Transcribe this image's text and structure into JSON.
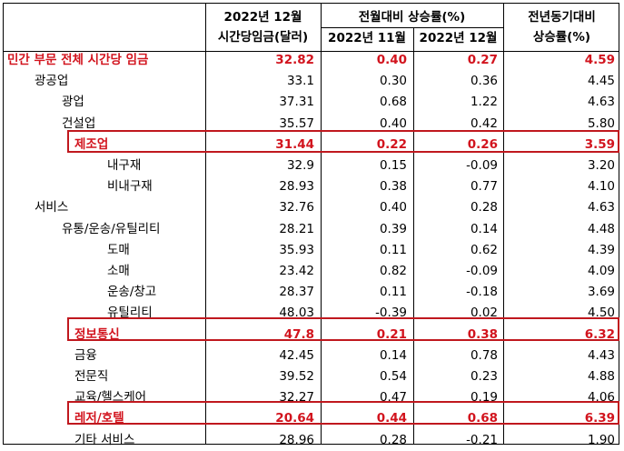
{
  "header": {
    "col1_line1": "2022년 12월",
    "col1_line2": "시간당임금(달러)",
    "group_label": "전월대비 상승률(%)",
    "col2_label": "2022년 11월",
    "col3_label": "2022년 12월",
    "col4_line1": "전년동기대비",
    "col4_line2": "상승률(%)"
  },
  "rows": [
    {
      "label": "민간 부문 전체 시간당 임금",
      "wage": "32.82",
      "nov": "0.40",
      "dec": "0.27",
      "yoy": "4.59"
    },
    {
      "label": "광공업",
      "wage": "33.1",
      "nov": "0.30",
      "dec": "0.36",
      "yoy": "4.45"
    },
    {
      "label": "광업",
      "wage": "37.31",
      "nov": "0.68",
      "dec": "1.22",
      "yoy": "4.63"
    },
    {
      "label": "건설업",
      "wage": "35.57",
      "nov": "0.40",
      "dec": "0.42",
      "yoy": "5.80"
    },
    {
      "label": "제조업",
      "wage": "31.44",
      "nov": "0.22",
      "dec": "0.26",
      "yoy": "3.59"
    },
    {
      "label": "내구재",
      "wage": "32.9",
      "nov": "0.15",
      "dec": "-0.09",
      "yoy": "3.20"
    },
    {
      "label": "비내구재",
      "wage": "28.93",
      "nov": "0.38",
      "dec": "0.77",
      "yoy": "4.10"
    },
    {
      "label": "서비스",
      "wage": "32.76",
      "nov": "0.40",
      "dec": "0.28",
      "yoy": "4.63"
    },
    {
      "label": "유통/운송/유틸리티",
      "wage": "28.21",
      "nov": "0.39",
      "dec": "0.14",
      "yoy": "4.48"
    },
    {
      "label": "도매",
      "wage": "35.93",
      "nov": "0.11",
      "dec": "0.62",
      "yoy": "4.39"
    },
    {
      "label": "소매",
      "wage": "23.42",
      "nov": "0.82",
      "dec": "-0.09",
      "yoy": "4.09"
    },
    {
      "label": "운송/창고",
      "wage": "28.37",
      "nov": "0.11",
      "dec": "-0.18",
      "yoy": "3.69"
    },
    {
      "label": "유틸리티",
      "wage": "48.03",
      "nov": "-0.39",
      "dec": "0.02",
      "yoy": "4.50"
    },
    {
      "label": "정보통신",
      "wage": "47.8",
      "nov": "0.21",
      "dec": "0.38",
      "yoy": "6.32"
    },
    {
      "label": "금융",
      "wage": "42.45",
      "nov": "0.14",
      "dec": "0.78",
      "yoy": "4.43"
    },
    {
      "label": "전문직",
      "wage": "39.52",
      "nov": "0.54",
      "dec": "0.23",
      "yoy": "4.88"
    },
    {
      "label": "교육/헬스케어",
      "wage": "32.27",
      "nov": "0.47",
      "dec": "0.19",
      "yoy": "4.06"
    },
    {
      "label": "레저/호텔",
      "wage": "20.64",
      "nov": "0.44",
      "dec": "0.68",
      "yoy": "6.39"
    },
    {
      "label": "기타 서비스",
      "wage": "28.96",
      "nov": "0.28",
      "dec": "-0.21",
      "yoy": "1.90"
    }
  ],
  "colors": {
    "highlight_text": "#d2141e",
    "highlight_box": "#c0181e"
  }
}
